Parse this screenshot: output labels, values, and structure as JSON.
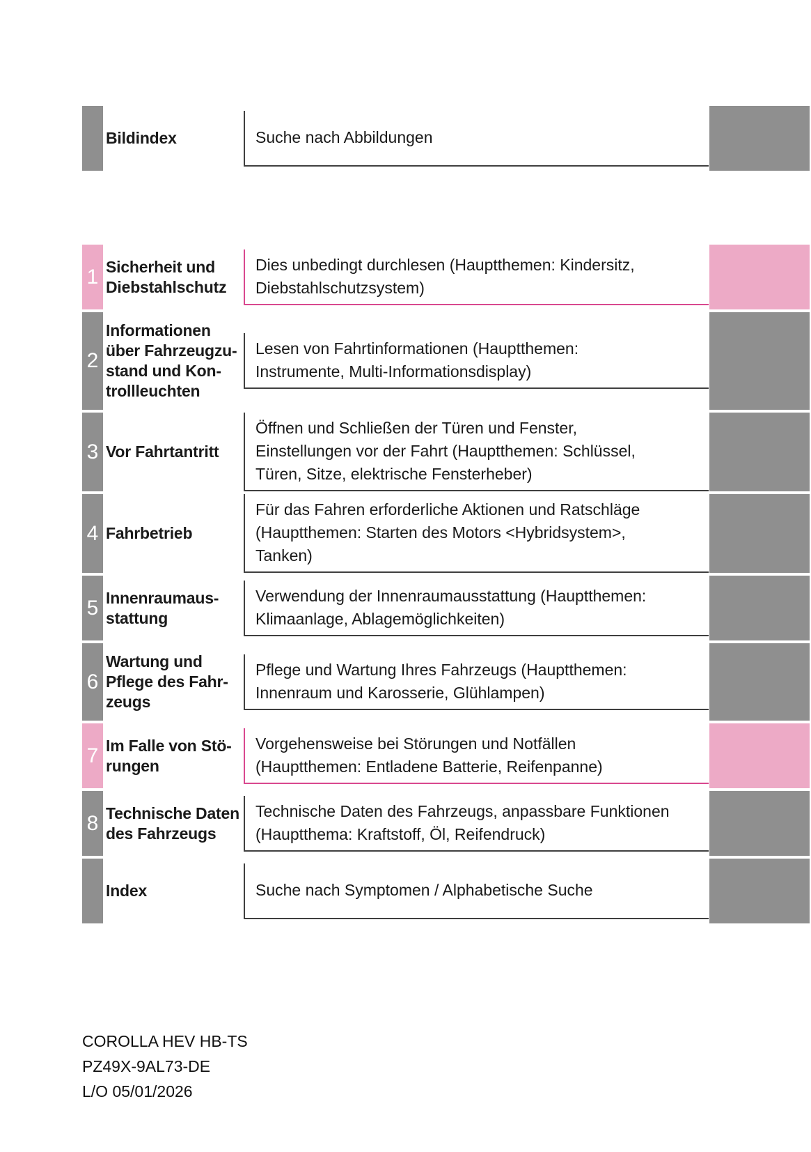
{
  "colors": {
    "tab_gray": "#8f8f8f",
    "tab_pink": "#edaac6",
    "border_dark": "#3f3f3f",
    "border_pink": "#d9488f"
  },
  "rows": [
    {
      "number": "",
      "title": "Bildindex",
      "description": "Suche nach Abbildungen",
      "theme": "gray"
    },
    {
      "number": "1",
      "title": "Sicherheit und\nDiebstahlschutz",
      "description": "Dies unbedingt durchlesen (Hauptthemen: Kindersitz,\nDiebstahlschutzsystem)",
      "theme": "pink"
    },
    {
      "number": "2",
      "title": "Informationen\nüber Fahrzeugzu-\nstand und Kon-\ntrollleuchten",
      "description": "Lesen von Fahrtinformationen (Hauptthemen:\nInstrumente, Multi-Informationsdisplay)",
      "theme": "gray"
    },
    {
      "number": "3",
      "title": "Vor Fahrtantritt",
      "description": "Öffnen und Schließen der Türen und Fenster,\nEinstellungen vor der Fahrt (Hauptthemen: Schlüssel,\nTüren, Sitze, elektrische Fensterheber)",
      "theme": "gray"
    },
    {
      "number": "4",
      "title": "Fahrbetrieb",
      "description": "Für das Fahren erforderliche Aktionen und Ratschläge\n(Hauptthemen: Starten des Motors <Hybridsystem>,\nTanken)",
      "theme": "gray"
    },
    {
      "number": "5",
      "title": "Innenraumaus-\nstattung",
      "description": "Verwendung der Innenraumausstattung (Hauptthemen:\nKlimaanlage, Ablagemöglichkeiten)",
      "theme": "gray"
    },
    {
      "number": "6",
      "title": "Wartung und\nPflege des Fahr-\nzeugs",
      "description": "Pflege und Wartung Ihres Fahrzeugs (Hauptthemen:\nInnenraum und Karosserie, Glühlampen)",
      "theme": "gray"
    },
    {
      "number": "7",
      "title": "Im Falle von Stö-\nrungen",
      "description": "Vorgehensweise bei Störungen und Notfällen\n(Hauptthemen: Entladene Batterie, Reifenpanne)",
      "theme": "pink"
    },
    {
      "number": "8",
      "title": "Technische Daten\ndes Fahrzeugs",
      "description": "Technische Daten des Fahrzeugs, anpassbare Funktionen\n(Hauptthema: Kraftstoff, Öl, Reifendruck)",
      "theme": "gray"
    },
    {
      "number": "",
      "title": "Index",
      "description": "Suche nach Symptomen / Alphabetische Suche",
      "theme": "gray"
    }
  ],
  "footer": {
    "model": "COROLLA HEV HB-TS",
    "part_number": "PZ49X-9AL73-DE",
    "layout_date": "L/O 05/01/2026"
  }
}
